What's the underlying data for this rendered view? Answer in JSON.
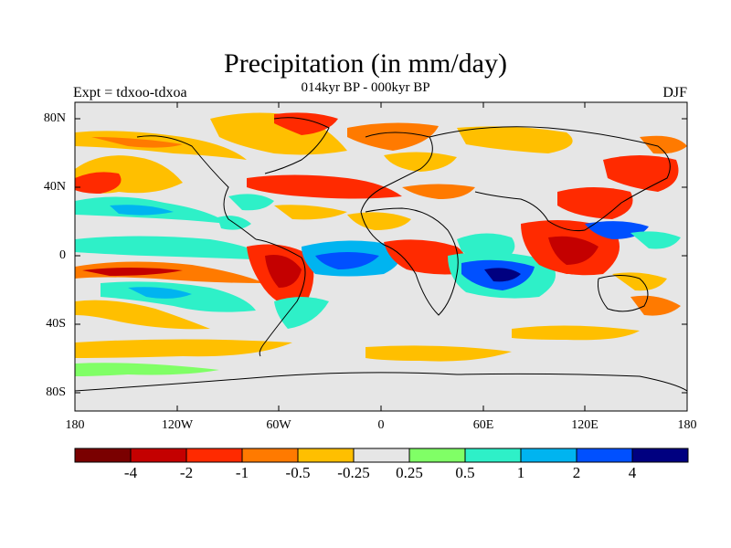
{
  "header": {
    "title": "Precipitation (in mm/day)",
    "subtitle": "014kyr BP - 000kyr BP",
    "left_label": "Expt = tdxoo-tdxoa",
    "right_label": "DJF"
  },
  "axes": {
    "lat_labels": [
      "80N",
      "40N",
      "0",
      "40S",
      "80S"
    ],
    "lon_labels": [
      "180",
      "120W",
      "60W",
      "0",
      "60E",
      "120E",
      "180"
    ]
  },
  "colorbar": {
    "colors": [
      "#7a0000",
      "#c40000",
      "#ff2a00",
      "#ff7a00",
      "#ffbf00",
      "#e6e6e6",
      "#80ff66",
      "#2ef0c8",
      "#00b4f0",
      "#0050ff",
      "#000080"
    ],
    "labels": [
      "-4",
      "-2",
      "-1",
      "-0.5",
      "-0.25",
      "0.25",
      "0.5",
      "1",
      "2",
      "4"
    ]
  }
}
